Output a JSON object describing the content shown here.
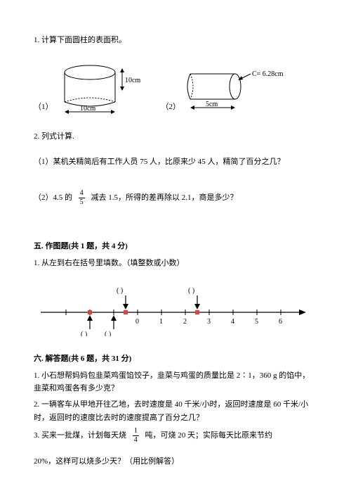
{
  "q1": {
    "text": "1. 计算下面圆柱的表面积。"
  },
  "fig1": {
    "num": "（1）",
    "height_label": "10cm",
    "width_label": "10cm"
  },
  "fig2": {
    "num": "（2）",
    "c_label": "C= 6.28cm",
    "width_label": "5cm"
  },
  "q2": {
    "text": "2. 列式计算."
  },
  "q2_1": "（1）某机关精简后有工作人员 75 人，比原来少 45 人，精简了百分之几？",
  "q2_2": {
    "before": "（2）4.5 的",
    "num": "4",
    "den": "5",
    "after": "减去 1.5，所得的差再除以 2.1，商是多少？"
  },
  "sec5": {
    "title": "五. 作图题(共 1 题，共 4 分)"
  },
  "sec5_q1": "1. 从左到右在括号里填数。（填整数或小数）",
  "numberline": {
    "ticks": [
      "0",
      "1",
      "2",
      "3",
      "4",
      "5",
      "6"
    ],
    "top_brackets": [
      "(    )",
      "(    )"
    ],
    "bottom_brackets": [
      "(    )",
      "(    )"
    ],
    "red_color": "#e8403a"
  },
  "sec6": {
    "title": "六. 解答题(共 6 题，共 31 分)"
  },
  "sec6_q1": "1. 小石想帮妈妈包韭菜鸡蛋馅饺子，韭菜与鸡蛋的质量比是 2∶1，360 g 的馅中，韭菜和鸡蛋各有多少克？",
  "sec6_q2": "2. 一辆客车从甲地开往乙地，去时速度是 40 千米/小时，返回时速度是 60 千米/小时，返回时的速度比去时的速度提高了百分之几？",
  "sec6_q3": {
    "before": "3. 买来一批煤，计划每天烧",
    "num": "1",
    "den": "4",
    "after": "吨，可烧 20 天；实际每天比原来节约"
  },
  "sec6_q3b": "20%，这样可以烧多少天？（用比例解答）"
}
